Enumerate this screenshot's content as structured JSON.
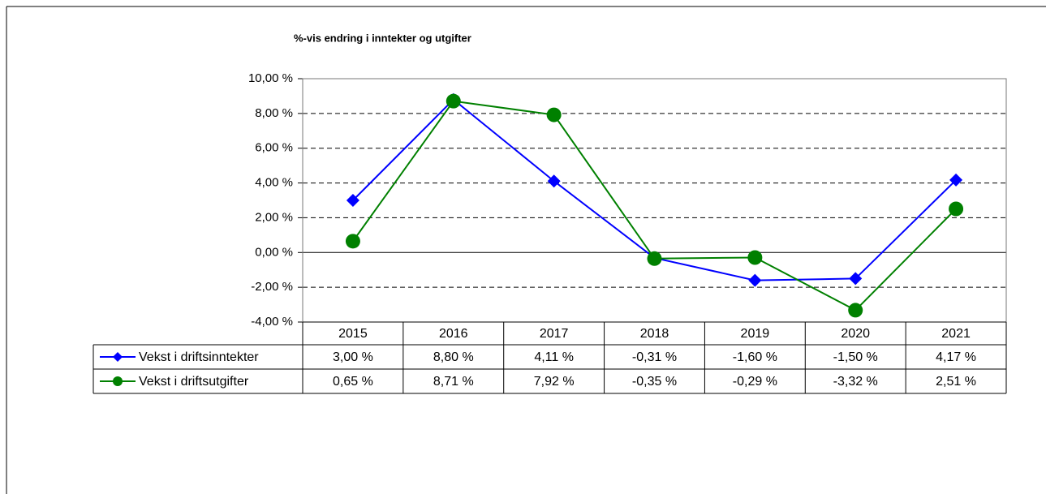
{
  "chart_data": {
    "type": "line",
    "title": "%-vis endring i inntekter og utgifter",
    "categories": [
      "2015",
      "2016",
      "2017",
      "2018",
      "2019",
      "2020",
      "2021"
    ],
    "series": [
      {
        "name": "Vekst i driftsinntekter",
        "color": "#0000ff",
        "marker": "diamond",
        "values": [
          3.0,
          8.8,
          4.11,
          -0.31,
          -1.6,
          -1.5,
          4.17
        ],
        "value_labels": [
          "3,00 %",
          "8,80 %",
          "4,11 %",
          "-0,31 %",
          "-1,60 %",
          "-1,50 %",
          "4,17 %"
        ]
      },
      {
        "name": "Vekst i driftsutgifter",
        "color": "#008000",
        "marker": "circle",
        "values": [
          0.65,
          8.71,
          7.92,
          -0.35,
          -0.29,
          -3.32,
          2.51
        ],
        "value_labels": [
          "0,65 %",
          "8,71 %",
          "7,92 %",
          "-0,35 %",
          "-0,29 %",
          "-3,32 %",
          "2,51 %"
        ]
      }
    ],
    "ylim": [
      -4,
      10
    ],
    "yticks": [
      {
        "value": 10,
        "label": "10,00 %"
      },
      {
        "value": 8,
        "label": "8,00 %"
      },
      {
        "value": 6,
        "label": "6,00 %"
      },
      {
        "value": 4,
        "label": "4,00 %"
      },
      {
        "value": 2,
        "label": "2,00 %"
      },
      {
        "value": 0,
        "label": "0,00 %"
      },
      {
        "value": -2,
        "label": "-2,00 %"
      },
      {
        "value": -4,
        "label": "-4,00 %"
      }
    ],
    "grid": true,
    "data_table": true
  }
}
